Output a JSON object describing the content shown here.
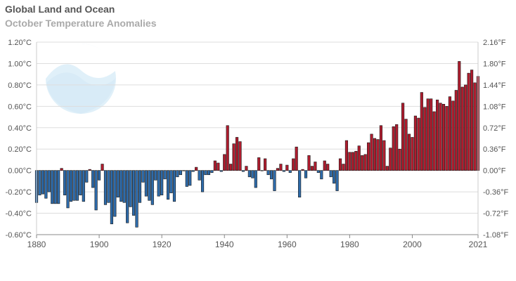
{
  "chart_data": {
    "type": "bar",
    "title": "Global Land and Ocean",
    "subtitle": "October Temperature Anomalies",
    "x_start": 1880,
    "x_end": 2021,
    "xticks": [
      "1880",
      "1900",
      "1920",
      "1940",
      "1960",
      "1980",
      "2000",
      "2021"
    ],
    "ylim": [
      -0.6,
      1.2
    ],
    "yticks_left": [
      "-0.60°C",
      "-0.40°C",
      "-0.20°C",
      "0.00°C",
      "0.20°C",
      "0.40°C",
      "0.60°C",
      "0.80°C",
      "1.00°C",
      "1.20°C"
    ],
    "yticks_right": [
      "-1.08°F",
      "-0.72°F",
      "-0.36°F",
      "0.00°F",
      "0.36°F",
      "0.72°F",
      "1.08°F",
      "1.44°F",
      "1.80°F",
      "2.16°F"
    ],
    "grid": true,
    "negative_color": "#2e6baa",
    "positive_color": "#b01c2e",
    "values": [
      -0.3,
      -0.23,
      -0.22,
      -0.26,
      -0.2,
      -0.31,
      -0.31,
      -0.31,
      0.02,
      -0.23,
      -0.35,
      -0.29,
      -0.28,
      -0.28,
      -0.23,
      -0.29,
      -0.11,
      0.01,
      -0.16,
      -0.37,
      -0.09,
      0.06,
      -0.32,
      -0.3,
      -0.5,
      -0.43,
      -0.25,
      -0.29,
      -0.3,
      -0.49,
      -0.34,
      -0.42,
      -0.53,
      -0.3,
      -0.11,
      -0.24,
      -0.28,
      -0.32,
      -0.09,
      -0.24,
      -0.23,
      -0.08,
      -0.27,
      -0.21,
      -0.29,
      -0.06,
      -0.04,
      0.0,
      -0.15,
      -0.14,
      -0.01,
      0.03,
      -0.09,
      -0.2,
      -0.04,
      -0.04,
      -0.02,
      0.09,
      0.07,
      -0.01,
      0.15,
      0.42,
      0.06,
      0.25,
      0.31,
      0.27,
      -0.01,
      0.04,
      -0.06,
      -0.07,
      -0.16,
      0.12,
      0.0,
      0.11,
      -0.04,
      -0.08,
      -0.19,
      0.02,
      0.06,
      -0.01,
      0.05,
      -0.02,
      0.11,
      0.22,
      -0.25,
      0.01,
      -0.07,
      0.14,
      0.04,
      0.08,
      -0.02,
      -0.08,
      0.09,
      0.06,
      -0.06,
      -0.12,
      -0.19,
      0.11,
      0.06,
      0.28,
      0.17,
      0.17,
      0.18,
      0.23,
      0.14,
      0.15,
      0.26,
      0.34,
      0.3,
      0.29,
      0.42,
      0.28,
      0.04,
      0.21,
      0.41,
      0.43,
      0.2,
      0.63,
      0.48,
      0.34,
      0.31,
      0.51,
      0.49,
      0.73,
      0.59,
      0.67,
      0.67,
      0.55,
      0.66,
      0.63,
      0.62,
      0.6,
      0.69,
      0.65,
      0.75,
      1.02,
      0.78,
      0.8,
      0.91,
      0.94,
      0.82,
      0.88
    ]
  }
}
